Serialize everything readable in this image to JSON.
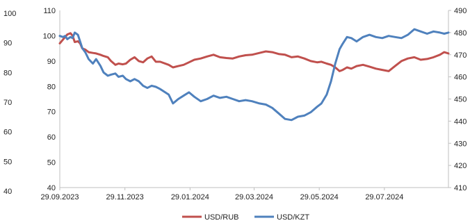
{
  "chart_data": {
    "type": "line",
    "left_axis_outer": {
      "ticks": [
        100,
        90,
        80,
        70,
        60,
        50,
        40
      ]
    },
    "left_axis_inner": {
      "ticks": [
        110,
        100,
        90,
        80,
        70,
        60,
        50,
        40
      ],
      "ylim": [
        40,
        110
      ]
    },
    "right_axis": {
      "ticks": [
        490,
        480,
        470,
        460,
        450,
        440,
        430,
        420,
        410
      ],
      "ylim": [
        410,
        490
      ]
    },
    "x_tick_labels": [
      "29.09.2023",
      "29.11.2023",
      "29.01.2024",
      "29.03.2024",
      "29.05.2024",
      "29.07.2024"
    ],
    "x_range": [
      "29.09.2023",
      "27.09.2024"
    ],
    "grid": false,
    "legend": {
      "position": "bottom"
    },
    "series": [
      {
        "name": "USD/RUB",
        "axis": "left",
        "color": "#c0504d",
        "points": [
          [
            "29.09.2023",
            97.0
          ],
          [
            "02.10.2023",
            98.5
          ],
          [
            "04.10.2023",
            99.5
          ],
          [
            "06.10.2023",
            100.5
          ],
          [
            "09.10.2023",
            101.0
          ],
          [
            "11.10.2023",
            100.0
          ],
          [
            "13.10.2023",
            97.5
          ],
          [
            "16.10.2023",
            97.8
          ],
          [
            "18.10.2023",
            97.0
          ],
          [
            "20.10.2023",
            95.0
          ],
          [
            "23.10.2023",
            94.5
          ],
          [
            "26.10.2023",
            93.5
          ],
          [
            "30.10.2023",
            93.2
          ],
          [
            "02.11.2023",
            93.0
          ],
          [
            "06.11.2023",
            92.5
          ],
          [
            "09.11.2023",
            92.0
          ],
          [
            "13.11.2023",
            91.5
          ],
          [
            "16.11.2023",
            90.0
          ],
          [
            "20.11.2023",
            88.5
          ],
          [
            "23.11.2023",
            89.0
          ],
          [
            "27.11.2023",
            88.7
          ],
          [
            "30.11.2023",
            89.0
          ],
          [
            "04.12.2023",
            90.5
          ],
          [
            "08.12.2023",
            91.5
          ],
          [
            "12.12.2023",
            90.0
          ],
          [
            "16.12.2023",
            89.5
          ],
          [
            "20.12.2023",
            91.0
          ],
          [
            "24.12.2023",
            91.8
          ],
          [
            "28.12.2023",
            89.7
          ],
          [
            "01.01.2024",
            89.7
          ],
          [
            "09.01.2024",
            88.5
          ],
          [
            "13.01.2024",
            87.5
          ],
          [
            "18.01.2024",
            88.0
          ],
          [
            "23.01.2024",
            88.5
          ],
          [
            "28.01.2024",
            89.5
          ],
          [
            "02.02.2024",
            90.5
          ],
          [
            "08.02.2024",
            91.0
          ],
          [
            "14.02.2024",
            91.8
          ],
          [
            "20.02.2024",
            92.5
          ],
          [
            "26.02.2024",
            91.5
          ],
          [
            "03.03.2024",
            91.2
          ],
          [
            "09.03.2024",
            91.0
          ],
          [
            "15.03.2024",
            91.8
          ],
          [
            "21.03.2024",
            92.3
          ],
          [
            "27.03.2024",
            92.5
          ],
          [
            "03.04.2024",
            93.2
          ],
          [
            "09.04.2024",
            93.8
          ],
          [
            "15.04.2024",
            93.5
          ],
          [
            "21.04.2024",
            92.8
          ],
          [
            "27.04.2024",
            92.5
          ],
          [
            "03.05.2024",
            91.5
          ],
          [
            "09.05.2024",
            91.8
          ],
          [
            "15.05.2024",
            91.0
          ],
          [
            "21.05.2024",
            90.0
          ],
          [
            "27.05.2024",
            89.5
          ],
          [
            "31.05.2024",
            89.7
          ],
          [
            "05.06.2024",
            89.0
          ],
          [
            "09.06.2024",
            88.5
          ],
          [
            "13.06.2024",
            87.5
          ],
          [
            "17.06.2024",
            86.0
          ],
          [
            "20.06.2024",
            86.5
          ],
          [
            "24.06.2024",
            87.5
          ],
          [
            "28.06.2024",
            87.0
          ],
          [
            "03.07.2024",
            88.0
          ],
          [
            "09.07.2024",
            88.5
          ],
          [
            "15.07.2024",
            87.8
          ],
          [
            "21.07.2024",
            87.0
          ],
          [
            "27.07.2024",
            86.5
          ],
          [
            "02.08.2024",
            86.0
          ],
          [
            "08.08.2024",
            88.0
          ],
          [
            "14.08.2024",
            90.0
          ],
          [
            "20.08.2024",
            91.0
          ],
          [
            "26.08.2024",
            91.5
          ],
          [
            "01.09.2024",
            90.5
          ],
          [
            "07.09.2024",
            90.8
          ],
          [
            "13.09.2024",
            91.5
          ],
          [
            "19.09.2024",
            92.5
          ],
          [
            "23.09.2024",
            93.5
          ],
          [
            "27.09.2024",
            93.0
          ]
        ]
      },
      {
        "name": "USD/KZT",
        "axis": "right",
        "color": "#4f81bd",
        "points": [
          [
            "29.09.2023",
            478.5
          ],
          [
            "02.10.2023",
            478.0
          ],
          [
            "04.10.2023",
            478.5
          ],
          [
            "06.10.2023",
            477.0
          ],
          [
            "09.10.2023",
            478.0
          ],
          [
            "11.10.2023",
            477.5
          ],
          [
            "13.10.2023",
            480.0
          ],
          [
            "16.10.2023",
            479.0
          ],
          [
            "18.10.2023",
            476.0
          ],
          [
            "20.10.2023",
            473.0
          ],
          [
            "23.10.2023",
            471.0
          ],
          [
            "26.10.2023",
            468.0
          ],
          [
            "30.10.2023",
            466.0
          ],
          [
            "02.11.2023",
            468.0
          ],
          [
            "06.11.2023",
            465.0
          ],
          [
            "09.11.2023",
            462.0
          ],
          [
            "13.11.2023",
            460.5
          ],
          [
            "16.11.2023",
            461.0
          ],
          [
            "20.11.2023",
            461.5
          ],
          [
            "23.11.2023",
            460.0
          ],
          [
            "27.11.2023",
            460.5
          ],
          [
            "30.11.2023",
            459.0
          ],
          [
            "04.12.2023",
            458.0
          ],
          [
            "08.12.2023",
            459.0
          ],
          [
            "12.12.2023",
            458.0
          ],
          [
            "16.12.2023",
            456.0
          ],
          [
            "20.12.2023",
            455.0
          ],
          [
            "24.12.2023",
            456.0
          ],
          [
            "28.12.2023",
            455.5
          ],
          [
            "01.01.2024",
            454.5
          ],
          [
            "09.01.2024",
            452.0
          ],
          [
            "13.01.2024",
            448.0
          ],
          [
            "18.01.2024",
            450.0
          ],
          [
            "23.01.2024",
            451.5
          ],
          [
            "28.01.2024",
            453.0
          ],
          [
            "02.02.2024",
            451.0
          ],
          [
            "08.02.2024",
            449.0
          ],
          [
            "14.02.2024",
            450.0
          ],
          [
            "20.02.2024",
            451.5
          ],
          [
            "26.02.2024",
            450.5
          ],
          [
            "03.03.2024",
            451.0
          ],
          [
            "09.03.2024",
            450.0
          ],
          [
            "15.03.2024",
            449.0
          ],
          [
            "21.03.2024",
            449.5
          ],
          [
            "27.03.2024",
            449.0
          ],
          [
            "03.04.2024",
            448.0
          ],
          [
            "09.04.2024",
            447.5
          ],
          [
            "15.04.2024",
            446.0
          ],
          [
            "21.04.2024",
            443.5
          ],
          [
            "27.04.2024",
            441.0
          ],
          [
            "03.05.2024",
            440.5
          ],
          [
            "09.05.2024",
            442.0
          ],
          [
            "15.05.2024",
            442.5
          ],
          [
            "21.05.2024",
            444.0
          ],
          [
            "27.05.2024",
            446.5
          ],
          [
            "31.05.2024",
            448.0
          ],
          [
            "05.06.2024",
            452.0
          ],
          [
            "09.06.2024",
            458.0
          ],
          [
            "13.06.2024",
            466.0
          ],
          [
            "17.06.2024",
            472.5
          ],
          [
            "20.06.2024",
            475.0
          ],
          [
            "24.06.2024",
            478.0
          ],
          [
            "28.06.2024",
            477.5
          ],
          [
            "03.07.2024",
            476.0
          ],
          [
            "09.07.2024",
            478.0
          ],
          [
            "15.07.2024",
            479.0
          ],
          [
            "21.07.2024",
            478.0
          ],
          [
            "27.07.2024",
            477.5
          ],
          [
            "02.08.2024",
            478.5
          ],
          [
            "08.08.2024",
            478.0
          ],
          [
            "14.08.2024",
            477.5
          ],
          [
            "20.08.2024",
            479.0
          ],
          [
            "26.08.2024",
            481.5
          ],
          [
            "01.09.2024",
            480.5
          ],
          [
            "07.09.2024",
            479.5
          ],
          [
            "13.09.2024",
            480.5
          ],
          [
            "19.09.2024",
            480.0
          ],
          [
            "23.09.2024",
            479.5
          ],
          [
            "27.09.2024",
            480.0
          ]
        ]
      }
    ]
  }
}
